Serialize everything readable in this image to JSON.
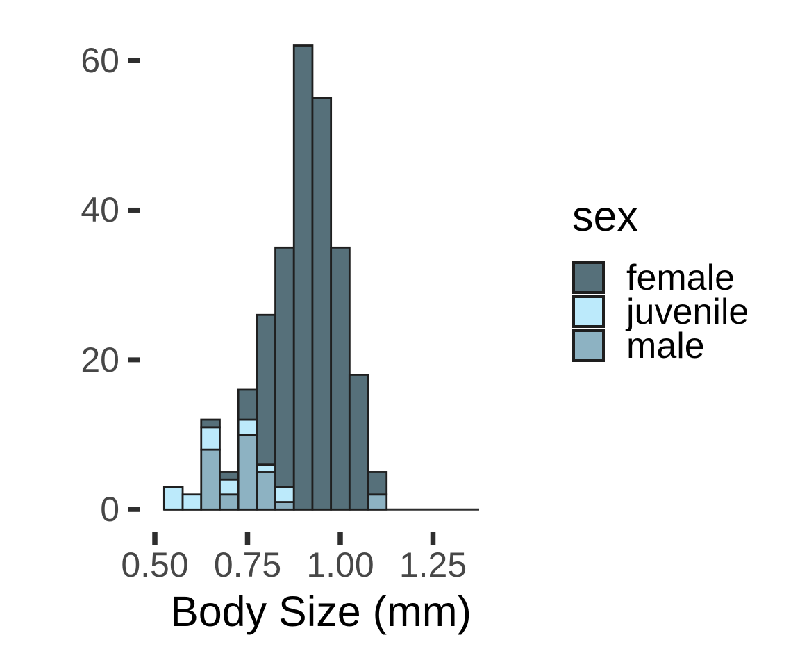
{
  "figure": {
    "background": "#FFFFFF"
  },
  "colors": {
    "female": "#56707A",
    "juvenile": "#BCEAFB",
    "male": "#8DB2C2",
    "bar_border": "#1F1F1F",
    "axis": "#2E2E2E",
    "tick_label": "#474747",
    "text": "#000000",
    "background": "#FFFFFF"
  },
  "chart_data": {
    "type": "bar",
    "subtype": "stacked-histogram",
    "title": "",
    "xlabel": "Body Size (mm)",
    "ylabel": "",
    "bin_width": 0.05,
    "bin_centers": [
      0.55,
      0.6,
      0.65,
      0.7,
      0.75,
      0.8,
      0.85,
      0.9,
      0.95,
      1.0,
      1.05,
      1.1
    ],
    "stack_order_bottom_to_top": [
      "male",
      "juvenile",
      "female"
    ],
    "series": [
      {
        "name": "male",
        "color": "#8DB2C2",
        "values": [
          0,
          0,
          8,
          2,
          10,
          5,
          1,
          0,
          0,
          0,
          0,
          2
        ]
      },
      {
        "name": "juvenile",
        "color": "#BCEAFB",
        "values": [
          3,
          2,
          3,
          2,
          2,
          1,
          2,
          0,
          0,
          0,
          0,
          0
        ]
      },
      {
        "name": "female",
        "color": "#56707A",
        "values": [
          0,
          0,
          1,
          1,
          4,
          20,
          32,
          62,
          55,
          35,
          18,
          3
        ]
      }
    ],
    "bin_totals": [
      3,
      2,
      12,
      5,
      16,
      26,
      35,
      62,
      55,
      35,
      18,
      5
    ],
    "x_ticks": [
      {
        "value": 0.5,
        "label": "0.50"
      },
      {
        "value": 0.75,
        "label": "0.75"
      },
      {
        "value": 1.0,
        "label": "1.00"
      },
      {
        "value": 1.25,
        "label": "1.25"
      }
    ],
    "y_ticks": [
      {
        "value": 0,
        "label": "0"
      },
      {
        "value": 20,
        "label": "20"
      },
      {
        "value": 40,
        "label": "40"
      },
      {
        "value": 60,
        "label": "60"
      }
    ],
    "ylim": [
      0,
      62
    ],
    "x_range_shown": [
      0.475,
      1.375
    ],
    "grid": "off",
    "legend": {
      "title": "sex",
      "position": "right",
      "entries": [
        {
          "label": "female",
          "color": "#56707A"
        },
        {
          "label": "juvenile",
          "color": "#BCEAFB"
        },
        {
          "label": "male",
          "color": "#8DB2C2"
        }
      ]
    }
  }
}
